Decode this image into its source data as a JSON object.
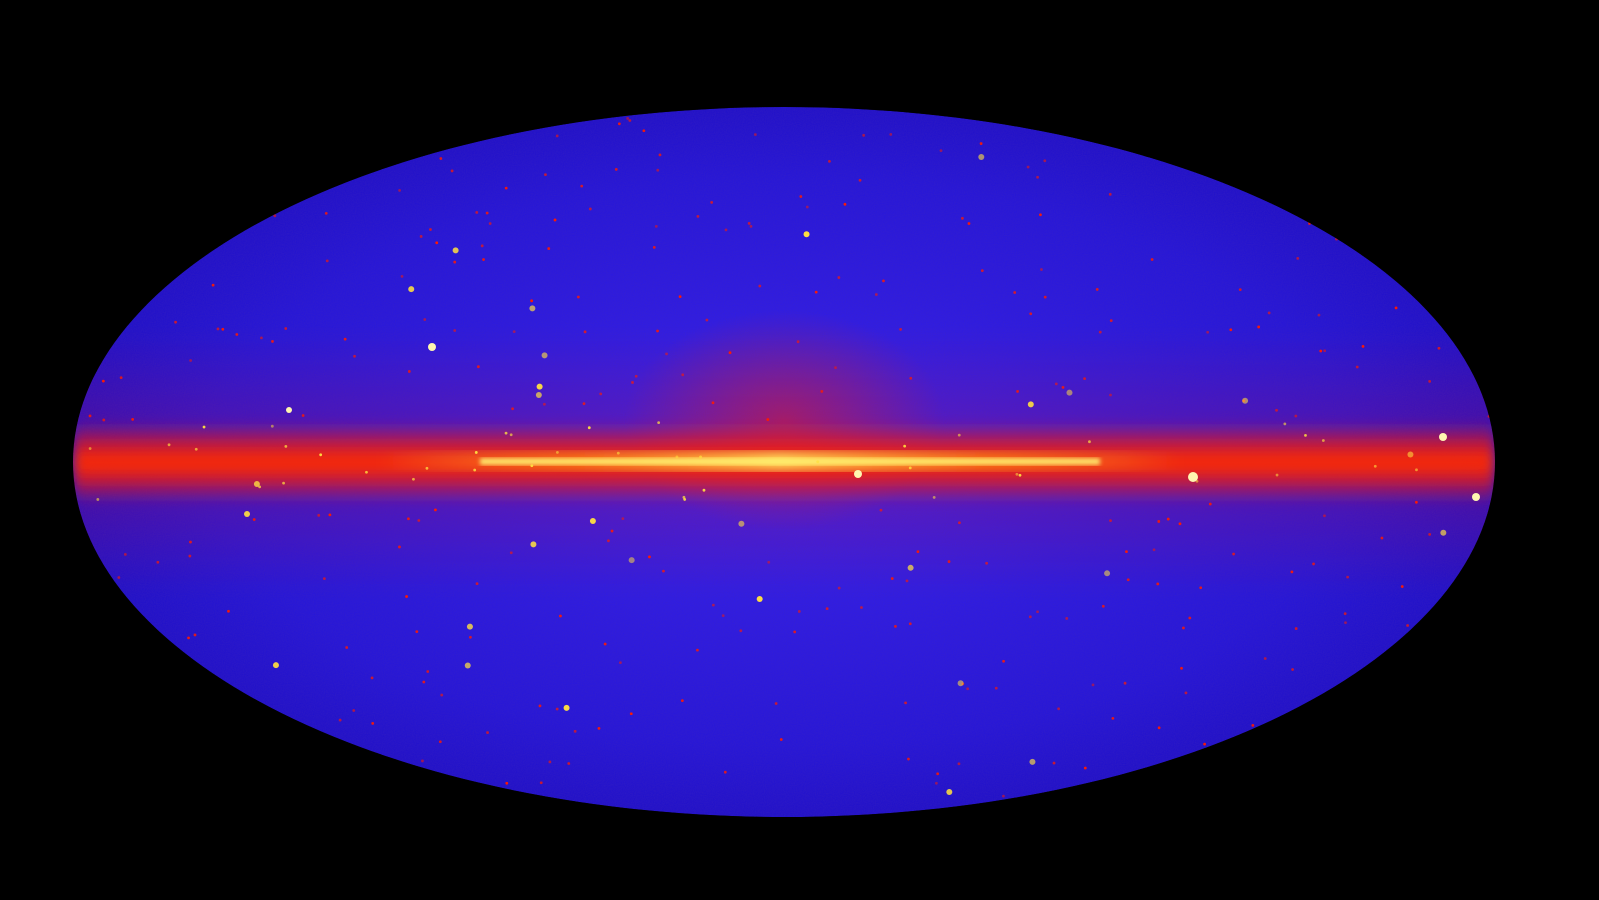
{
  "image": {
    "subject": "all-sky map",
    "projection": "elliptical",
    "colors": {
      "background": "#000000",
      "sky_base": "#2a18e6",
      "sky_dark": "#1a0cb0",
      "plane_red": "#ff1a00",
      "plane_orange": "#ff6a00",
      "plane_core": "#ffe040",
      "source_core": "#fff6b0"
    }
  }
}
